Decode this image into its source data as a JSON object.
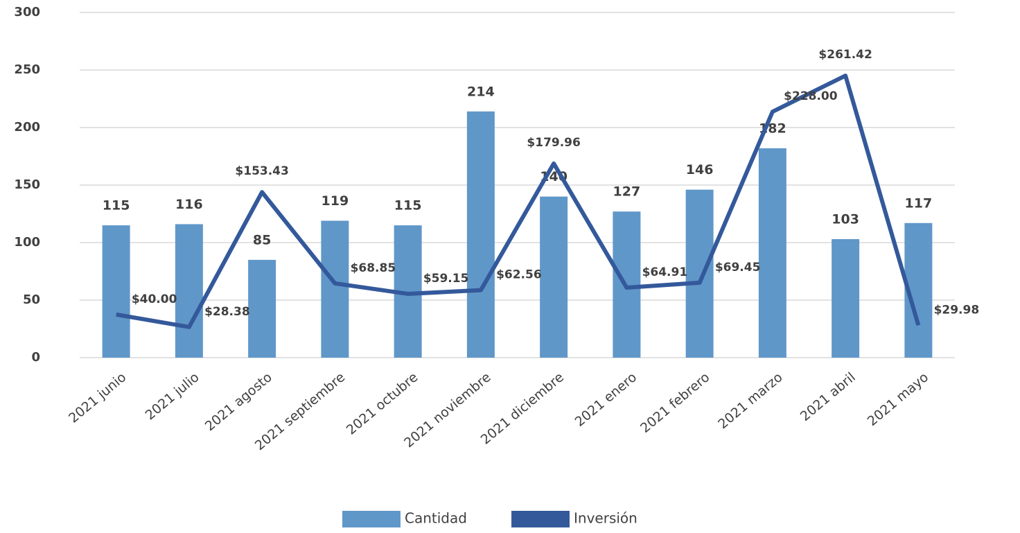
{
  "chart_data": {
    "type": "bar-line",
    "categories": [
      "2021 junio",
      "2021 julio",
      "2021 agosto",
      "2021 septiembre",
      "2021 octubre",
      "2021 noviembre",
      "2021 diciembre",
      "2021 enero",
      "2021 febrero",
      "2021 marzo",
      "2021 abril",
      "2021 mayo"
    ],
    "series": [
      {
        "name": "Cantidad",
        "type": "bar",
        "color": "#6097c9",
        "values": [
          115,
          116,
          85,
          119,
          115,
          214,
          140,
          127,
          146,
          182,
          103,
          117
        ]
      },
      {
        "name": "Inversión",
        "type": "line",
        "axis": "y2",
        "color": "#34599b",
        "values": [
          40.0,
          28.38,
          153.43,
          68.85,
          59.15,
          62.56,
          179.96,
          64.91,
          69.45,
          228.0,
          261.42,
          29.98
        ],
        "value_labels": [
          "$40.00",
          "$28.38",
          "$153.43",
          "$68.85",
          "$59.15",
          "$62.56",
          "$179.96",
          "$64.91",
          "$69.45",
          "$228.00",
          "$261.42",
          "$29.98"
        ]
      }
    ],
    "ylim": [
      0,
      300
    ],
    "yticks": [
      0,
      50,
      100,
      150,
      200,
      250,
      300
    ],
    "y2lim": [
      0,
      320
    ],
    "grid": true,
    "legend": "bottom"
  }
}
